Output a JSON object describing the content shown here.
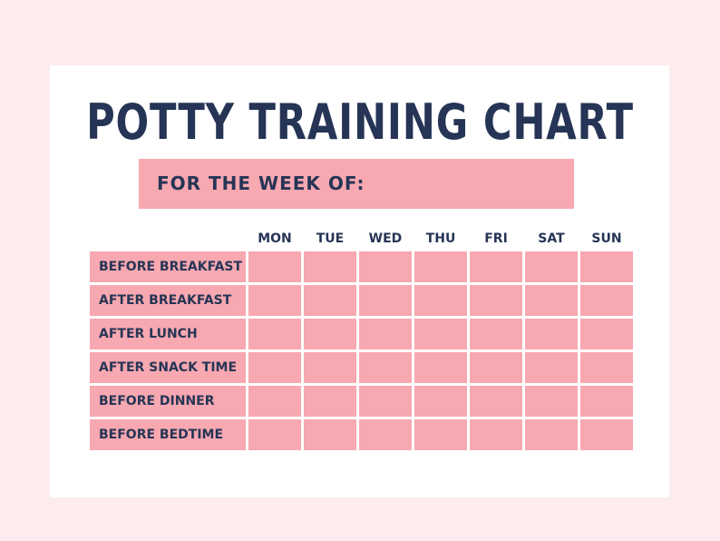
{
  "title": "POTTY TRAINING CHART",
  "week_label": "FOR THE WEEK OF:",
  "days": [
    "MON",
    "TUE",
    "WED",
    "THU",
    "FRI",
    "SAT",
    "SUN"
  ],
  "rows": [
    "BEFORE BREAKFAST",
    "AFTER BREAKFAST",
    "AFTER LUNCH",
    "AFTER SNACK TIME",
    "BEFORE DINNER",
    "BEFORE BEDTIME"
  ],
  "colors": {
    "background": "#fdeced",
    "accent": "#f7a8b0",
    "text": "#263556"
  }
}
